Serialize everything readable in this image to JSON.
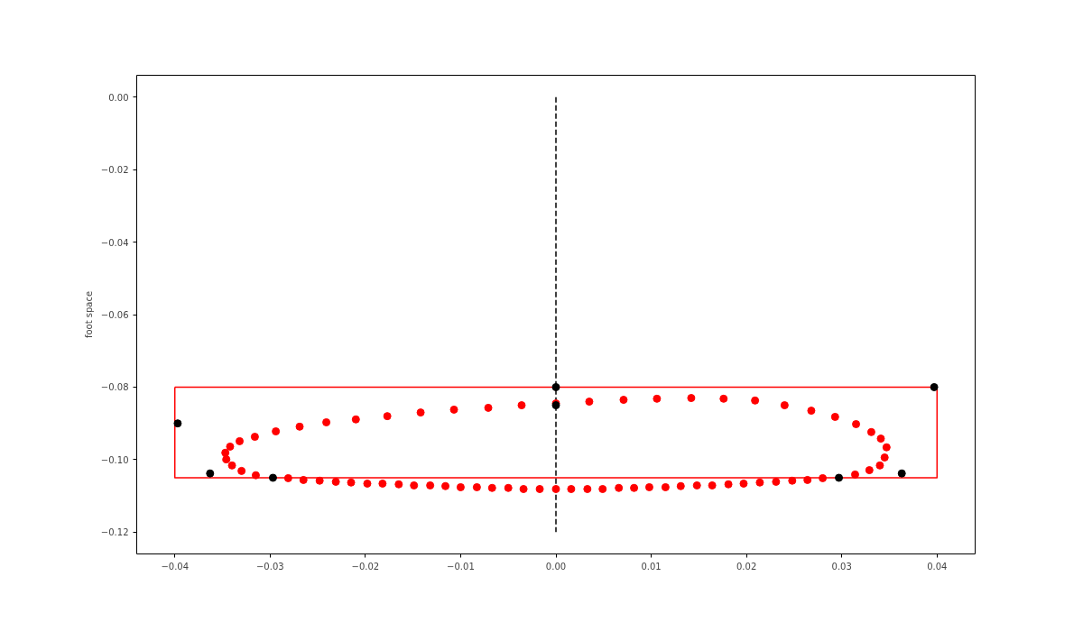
{
  "chart_data": {
    "type": "scatter",
    "ylabel": "foot space",
    "grid": false,
    "marker": "circle",
    "xlim": [
      -0.044,
      0.044
    ],
    "ylim": [
      -0.126,
      0.006
    ],
    "xticks": [
      {
        "value": -0.04,
        "label": "−0.04"
      },
      {
        "value": -0.03,
        "label": "−0.03"
      },
      {
        "value": -0.02,
        "label": "−0.02"
      },
      {
        "value": -0.01,
        "label": "−0.01"
      },
      {
        "value": 0,
        "label": "0.00"
      },
      {
        "value": 0.01,
        "label": "0.01"
      },
      {
        "value": 0.02,
        "label": "0.02"
      },
      {
        "value": 0.03,
        "label": "0.03"
      },
      {
        "value": 0.04,
        "label": "0.04"
      }
    ],
    "yticks": [
      {
        "value": 0,
        "label": "0.00"
      },
      {
        "value": -0.02,
        "label": "−0.02"
      },
      {
        "value": -0.04,
        "label": "−0.04"
      },
      {
        "value": -0.06,
        "label": "−0.06"
      },
      {
        "value": -0.08,
        "label": "−0.08"
      },
      {
        "value": -0.1,
        "label": "−0.10"
      },
      {
        "value": -0.12,
        "label": "−0.12"
      }
    ],
    "series": [
      {
        "type": "line",
        "marker": "none",
        "color": "#ff0000",
        "line_style": "solid",
        "x": [
          -0.04,
          0.04
        ],
        "values": [
          -0.08,
          -0.08
        ]
      },
      {
        "type": "line",
        "marker": "none",
        "color": "#ff0000",
        "line_style": "solid",
        "x": [
          0.04,
          0.04,
          -0.04,
          -0.04
        ],
        "values": [
          -0.08,
          -0.105,
          -0.105,
          -0.08
        ]
      },
      {
        "type": "line",
        "marker": "none",
        "color": "#000000",
        "line_style": "dashed",
        "x": [
          0,
          0
        ],
        "values": [
          0,
          -0.12
        ]
      },
      {
        "color": "#ff0000",
        "x": [
          0,
          -0.0036,
          -0.0071,
          -0.0107,
          -0.0142,
          -0.0177,
          -0.021,
          -0.0241,
          -0.0269,
          -0.0294,
          -0.0316,
          -0.0332,
          -0.0342,
          -0.0347,
          -0.0346,
          -0.034,
          -0.033,
          -0.0315,
          -0.0281,
          -0.0265,
          -0.0248,
          -0.0231,
          -0.0215,
          -0.0198,
          -0.0182,
          -0.0165,
          -0.0149,
          -0.0132,
          -0.0116,
          -0.01,
          -0.0083,
          -0.0067,
          -0.005,
          -0.0034,
          -0.0017,
          0,
          0.0016,
          0.0033,
          0.0049,
          0.0066,
          0.0082,
          0.0098,
          0.0115,
          0.0131,
          0.0148,
          0.0164,
          0.0181,
          0.0197,
          0.0214,
          0.0231,
          0.0248,
          0.0264,
          0.028,
          0.0314,
          0.0329,
          0.034,
          0.0345,
          0.0347,
          0.0341,
          0.0331,
          0.0315,
          0.0293,
          0.0268,
          0.024,
          0.0209,
          0.0176,
          0.0142,
          0.0106,
          0.0071,
          0.0035
        ],
        "values": [
          -0.0845,
          -0.085,
          -0.0857,
          -0.0862,
          -0.087,
          -0.088,
          -0.0889,
          -0.0897,
          -0.0909,
          -0.0922,
          -0.0937,
          -0.0949,
          -0.0964,
          -0.0981,
          -0.0999,
          -0.1016,
          -0.1031,
          -0.1043,
          -0.1051,
          -0.1056,
          -0.1058,
          -0.1061,
          -0.1063,
          -0.1066,
          -0.1066,
          -0.1068,
          -0.1071,
          -0.1071,
          -0.1073,
          -0.1076,
          -0.1076,
          -0.1078,
          -0.1078,
          -0.1081,
          -0.1081,
          -0.1081,
          -0.1081,
          -0.1081,
          -0.1081,
          -0.1078,
          -0.1078,
          -0.1076,
          -0.1076,
          -0.1073,
          -0.1071,
          -0.1071,
          -0.1068,
          -0.1066,
          -0.1063,
          -0.1061,
          -0.1058,
          -0.1056,
          -0.1051,
          -0.1041,
          -0.1029,
          -0.1016,
          -0.0994,
          -0.0966,
          -0.0942,
          -0.0924,
          -0.0902,
          -0.0882,
          -0.0865,
          -0.085,
          -0.0837,
          -0.0832,
          -0.083,
          -0.0832,
          -0.0835,
          -0.084
        ]
      },
      {
        "color": "#000000",
        "x": [
          -0.0397,
          -0.0363,
          -0.0297,
          0,
          0,
          0.0297,
          0.0363,
          0.0397
        ],
        "values": [
          -0.09,
          -0.1038,
          -0.105,
          -0.08,
          -0.085,
          -0.105,
          -0.1038,
          -0.08
        ]
      }
    ]
  }
}
